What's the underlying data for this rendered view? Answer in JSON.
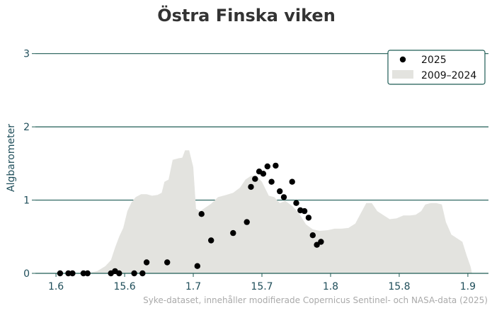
{
  "chart_data": {
    "type": "scatter",
    "title": "Östra Finska viken",
    "ylabel": "Algbarometer",
    "xlabel": "",
    "x_ticks": [
      "1.6",
      "15.6",
      "1.7",
      "15.7",
      "1.8",
      "15.8",
      "1.9"
    ],
    "x_tick_values": [
      1.6,
      1.65,
      1.7,
      1.75,
      1.8,
      1.85,
      1.9
    ],
    "xlim": [
      1.585,
      1.915
    ],
    "y_ticks": [
      "0",
      "1",
      "2",
      "3"
    ],
    "y_tick_values": [
      0,
      1,
      2,
      3
    ],
    "ylim": [
      0,
      3.2
    ],
    "grid": "horizontal",
    "legend_position": "top-right",
    "colors": {
      "points": "#000000",
      "band": "#e3e3df",
      "grid": "#1f5c55",
      "legend_border": "#1f5c55",
      "tick_text": "#1f4e5a"
    },
    "series": [
      {
        "name": "2025",
        "kind": "points",
        "points": [
          [
            1.603,
            0.0
          ],
          [
            1.609,
            0.0
          ],
          [
            1.612,
            0.0
          ],
          [
            1.62,
            0.0
          ],
          [
            1.623,
            0.0
          ],
          [
            1.64,
            0.0
          ],
          [
            1.643,
            0.03
          ],
          [
            1.646,
            0.0
          ],
          [
            1.657,
            0.0
          ],
          [
            1.663,
            0.0
          ],
          [
            1.666,
            0.15
          ],
          [
            1.681,
            0.15
          ],
          [
            1.703,
            0.1
          ],
          [
            1.706,
            0.81
          ],
          [
            1.713,
            0.45
          ],
          [
            1.729,
            0.55
          ],
          [
            1.739,
            0.7
          ],
          [
            1.742,
            1.18
          ],
          [
            1.745,
            1.29
          ],
          [
            1.748,
            1.39
          ],
          [
            1.751,
            1.36
          ],
          [
            1.754,
            1.46
          ],
          [
            1.757,
            1.25
          ],
          [
            1.76,
            1.47
          ],
          [
            1.763,
            1.12
          ],
          [
            1.766,
            1.04
          ],
          [
            1.772,
            1.25
          ],
          [
            1.775,
            0.96
          ],
          [
            1.778,
            0.86
          ],
          [
            1.781,
            0.85
          ],
          [
            1.784,
            0.76
          ],
          [
            1.787,
            0.52
          ],
          [
            1.79,
            0.39
          ],
          [
            1.793,
            0.43
          ]
        ]
      },
      {
        "name": "2009–2024",
        "kind": "band",
        "upper": [
          [
            1.612,
            0.0
          ],
          [
            1.622,
            0.0
          ],
          [
            1.63,
            0.03
          ],
          [
            1.636,
            0.1
          ],
          [
            1.64,
            0.18
          ],
          [
            1.643,
            0.35
          ],
          [
            1.646,
            0.5
          ],
          [
            1.649,
            0.62
          ],
          [
            1.652,
            0.85
          ],
          [
            1.655,
            0.97
          ],
          [
            1.658,
            1.04
          ],
          [
            1.662,
            1.08
          ],
          [
            1.666,
            1.08
          ],
          [
            1.67,
            1.06
          ],
          [
            1.674,
            1.07
          ],
          [
            1.677,
            1.1
          ],
          [
            1.679,
            1.25
          ],
          [
            1.682,
            1.28
          ],
          [
            1.685,
            1.55
          ],
          [
            1.689,
            1.57
          ],
          [
            1.692,
            1.58
          ],
          [
            1.694,
            1.68
          ],
          [
            1.697,
            1.68
          ],
          [
            1.7,
            1.45
          ],
          [
            1.702,
            0.88
          ],
          [
            1.705,
            0.85
          ],
          [
            1.709,
            0.9
          ],
          [
            1.713,
            0.95
          ],
          [
            1.718,
            1.04
          ],
          [
            1.724,
            1.07
          ],
          [
            1.729,
            1.1
          ],
          [
            1.734,
            1.17
          ],
          [
            1.738,
            1.28
          ],
          [
            1.742,
            1.33
          ],
          [
            1.746,
            1.33
          ],
          [
            1.75,
            1.25
          ],
          [
            1.755,
            1.06
          ],
          [
            1.759,
            1.04
          ],
          [
            1.763,
            0.96
          ],
          [
            1.767,
            0.99
          ],
          [
            1.772,
            0.92
          ],
          [
            1.777,
            0.82
          ],
          [
            1.782,
            0.67
          ],
          [
            1.787,
            0.6
          ],
          [
            1.792,
            0.58
          ],
          [
            1.798,
            0.59
          ],
          [
            1.803,
            0.61
          ],
          [
            1.808,
            0.61
          ],
          [
            1.813,
            0.62
          ],
          [
            1.818,
            0.68
          ],
          [
            1.822,
            0.82
          ],
          [
            1.826,
            0.96
          ],
          [
            1.83,
            0.96
          ],
          [
            1.834,
            0.85
          ],
          [
            1.838,
            0.8
          ],
          [
            1.843,
            0.74
          ],
          [
            1.848,
            0.75
          ],
          [
            1.853,
            0.79
          ],
          [
            1.858,
            0.79
          ],
          [
            1.862,
            0.8
          ],
          [
            1.866,
            0.85
          ],
          [
            1.869,
            0.94
          ],
          [
            1.873,
            0.96
          ],
          [
            1.877,
            0.96
          ],
          [
            1.881,
            0.94
          ],
          [
            1.884,
            0.7
          ],
          [
            1.888,
            0.53
          ],
          [
            1.892,
            0.48
          ],
          [
            1.896,
            0.43
          ],
          [
            1.899,
            0.25
          ],
          [
            1.902,
            0.09
          ],
          [
            1.903,
            0.0
          ]
        ]
      }
    ]
  },
  "legend": {
    "items": [
      "2025",
      "2009–2024"
    ]
  },
  "source": "Syke-dataset, innehåller modifierade Copernicus Sentinel- och NASA-data (2025)"
}
